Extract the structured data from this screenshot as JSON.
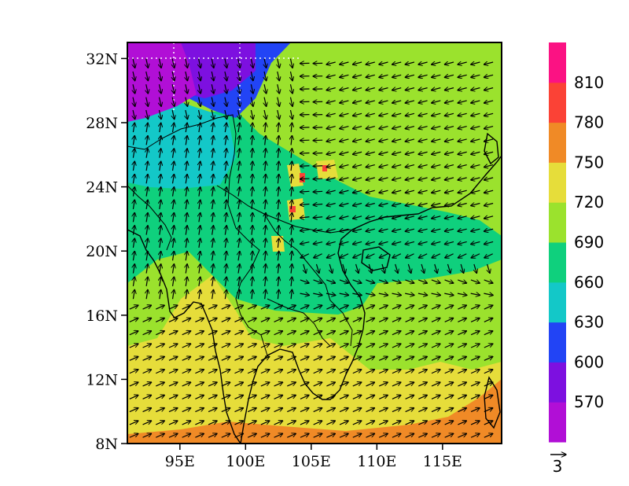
{
  "map": {
    "lon_range": [
      91,
      119.5
    ],
    "lat_range": [
      8,
      33
    ],
    "lon_ticks": [
      {
        "value": 95,
        "label": "95E"
      },
      {
        "value": 100,
        "label": "100E"
      },
      {
        "value": 105,
        "label": "105E"
      },
      {
        "value": 110,
        "label": "110E"
      },
      {
        "value": 115,
        "label": "115E"
      }
    ],
    "lat_ticks": [
      {
        "value": 8,
        "label": "8N"
      },
      {
        "value": 12,
        "label": "12N"
      },
      {
        "value": 16,
        "label": "16N"
      },
      {
        "value": 20,
        "label": "20N"
      },
      {
        "value": 24,
        "label": "24N"
      },
      {
        "value": 28,
        "label": "28N"
      },
      {
        "value": 32,
        "label": "32N"
      }
    ],
    "dotted_gridlines": {
      "lon": [
        94,
        100
      ],
      "lat": [
        32
      ]
    },
    "wind_reference": {
      "value": "3"
    }
  },
  "colorbar": {
    "levels": [
      {
        "label": "",
        "color": "#b10fd6"
      },
      {
        "label": "570",
        "color": "#7d10e0"
      },
      {
        "label": "600",
        "color": "#2244f5"
      },
      {
        "label": "630",
        "color": "#13c8c8"
      },
      {
        "label": "660",
        "color": "#0fd07d"
      },
      {
        "label": "690",
        "color": "#9be22d"
      },
      {
        "label": "720",
        "color": "#e6dd3a"
      },
      {
        "label": "750",
        "color": "#f08a26"
      },
      {
        "label": "780",
        "color": "#fb4236"
      },
      {
        "label": "810",
        "color": "#fb1283"
      }
    ]
  },
  "chart_data": {
    "type": "heatmap",
    "field": "filled contour with wind vectors",
    "x": {
      "unit": "degrees E",
      "range": [
        91,
        119.5
      ]
    },
    "y": {
      "unit": "degrees N",
      "range": [
        8,
        33
      ]
    },
    "contour_levels": [
      570,
      600,
      630,
      660,
      690,
      720,
      750,
      780,
      810
    ],
    "regions": [
      {
        "level_color": "#b10fd6",
        "approx_lon": [
          91,
          96
        ],
        "approx_lat": [
          29,
          33
        ]
      },
      {
        "level_color": "#7d10e0",
        "approx_lon": [
          95,
          99
        ],
        "approx_lat": [
          29,
          33
        ]
      },
      {
        "level_color": "#2244f5",
        "approx_lon": [
          99,
          103
        ],
        "approx_lat": [
          28,
          33
        ]
      },
      {
        "level_color": "#13c8c8",
        "approx_lon": [
          91,
          102
        ],
        "approx_lat": [
          23,
          29
        ]
      },
      {
        "level_color": "#0fd07d",
        "approx_lon": [
          91,
          119.5
        ],
        "approx_lat": [
          17,
          24
        ]
      },
      {
        "level_color": "#9be22d",
        "approx_lon": [
          103,
          119.5
        ],
        "approx_lat": [
          14,
          33
        ]
      },
      {
        "level_color": "#e6dd3a",
        "approx_lon": [
          91,
          112
        ],
        "approx_lat": [
          8.5,
          17
        ]
      },
      {
        "level_color": "#f08a26",
        "approx_lon": [
          91,
          119.5
        ],
        "approx_lat": [
          8,
          11
        ]
      }
    ],
    "wind_pattern": [
      {
        "region": "south of 18N",
        "direction": "toward east-northeast"
      },
      {
        "region": "east of 106E north of 20N",
        "direction": "toward west-southwest"
      },
      {
        "region": "west of 100E between 20N and 28N",
        "direction": "toward north"
      }
    ]
  }
}
